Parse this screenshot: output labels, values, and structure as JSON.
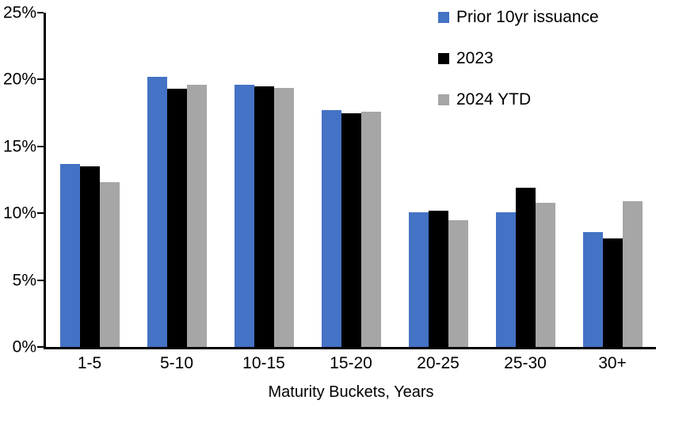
{
  "chart_data": {
    "type": "bar",
    "title": "",
    "categories": [
      "1-5",
      "5-10",
      "10-15",
      "15-20",
      "20-25",
      "25-30",
      "30+"
    ],
    "series": [
      {
        "name": "Prior 10yr issuance",
        "color": "#4472C4",
        "values": [
          13.7,
          20.2,
          19.6,
          17.7,
          10.1,
          10.1,
          8.6
        ]
      },
      {
        "name": "2023",
        "color": "#000000",
        "values": [
          13.5,
          19.3,
          19.5,
          17.5,
          10.2,
          11.9,
          8.1
        ]
      },
      {
        "name": "2024 YTD",
        "color": "#A6A6A6",
        "values": [
          12.3,
          19.6,
          19.4,
          17.6,
          9.5,
          10.8,
          10.9
        ]
      }
    ],
    "xlabel": "Maturity Buckets, Years",
    "ylabel": "",
    "ylim": [
      0,
      25
    ],
    "ytick_step": 5,
    "ytick_labels": [
      "0%",
      "5%",
      "10%",
      "15%",
      "20%",
      "25%"
    ],
    "grid": false,
    "legend_position": "top-right",
    "axis_color": "#000000",
    "background_color": "#FFFFFF"
  }
}
